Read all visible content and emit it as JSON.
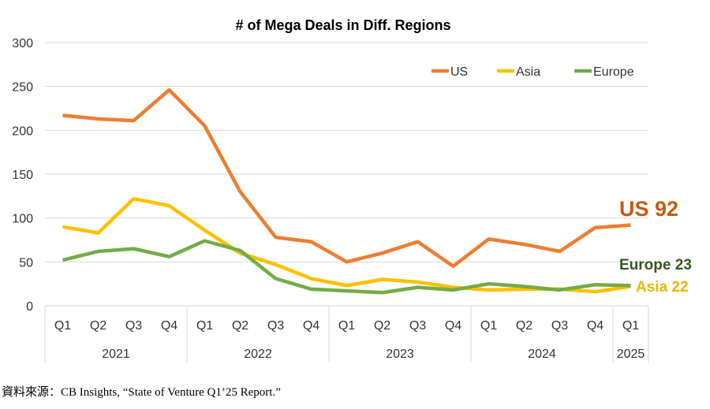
{
  "chart_data": {
    "type": "line",
    "title": "# of Mega Deals in Diff. Regions",
    "categories": [
      "Q1",
      "Q2",
      "Q3",
      "Q4",
      "Q1",
      "Q2",
      "Q3",
      "Q4",
      "Q1",
      "Q2",
      "Q3",
      "Q4",
      "Q1",
      "Q2",
      "Q3",
      "Q4",
      "Q1"
    ],
    "year_groups": [
      {
        "label": "2021",
        "count": 4
      },
      {
        "label": "2022",
        "count": 4
      },
      {
        "label": "2023",
        "count": 4
      },
      {
        "label": "2024",
        "count": 4
      },
      {
        "label": "2025",
        "count": 1
      }
    ],
    "ylim": [
      0,
      300
    ],
    "yticks": [
      0,
      50,
      100,
      150,
      200,
      250,
      300
    ],
    "grid": true,
    "legend_position": "top-right",
    "series": [
      {
        "name": "US",
        "color": "#ED7D31",
        "label": "US  92",
        "label_color": "#C55A11",
        "values": [
          217,
          213,
          211,
          246,
          205,
          130,
          78,
          73,
          50,
          60,
          73,
          45,
          76,
          70,
          62,
          89,
          92
        ]
      },
      {
        "name": "Asia",
        "color": "#FFC000",
        "label": "Asia 22",
        "label_color": "#F0B400",
        "values": [
          90,
          83,
          122,
          114,
          86,
          60,
          47,
          31,
          23,
          30,
          27,
          21,
          18,
          19,
          19,
          16,
          22
        ]
      },
      {
        "name": "Europe",
        "color": "#70AD47",
        "label": "Europe 23",
        "label_color": "#375623",
        "values": [
          52,
          62,
          65,
          56,
          74,
          63,
          31,
          19,
          17,
          15,
          21,
          18,
          25,
          22,
          18,
          24,
          23
        ]
      }
    ]
  },
  "source": "資料來源：CB Insights, “State of Venture Q1’25 Report.”"
}
